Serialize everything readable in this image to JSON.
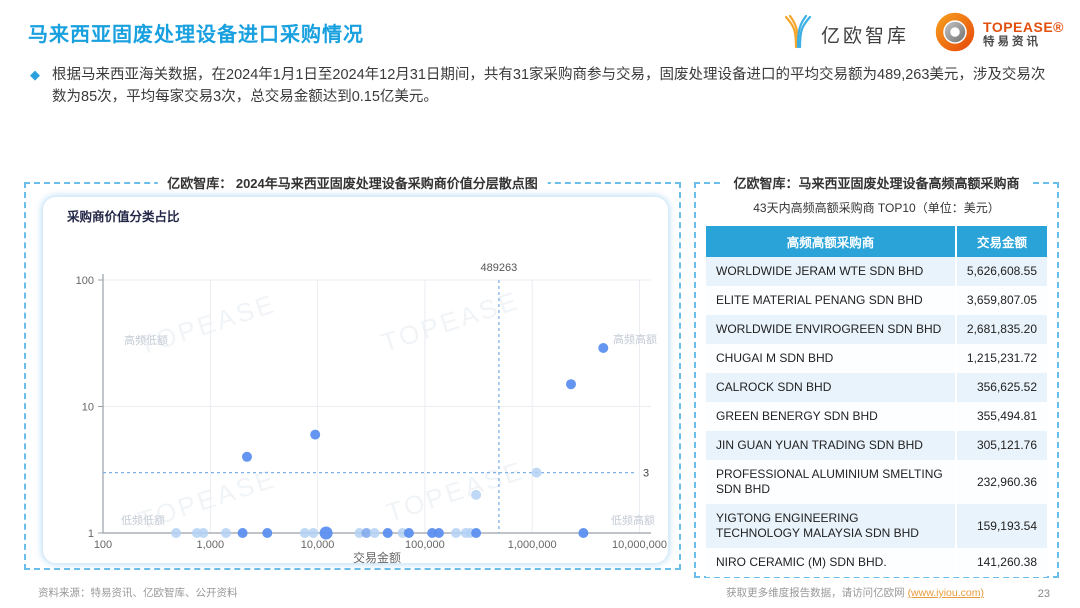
{
  "header": {
    "title": "马来西亚固废处理设备进口采购情况",
    "bullet": "根据马来西亚海关数据，在2024年1月1日至2024年12月31日期间，共有31家采购商参与交易，固废处理设备进口的平均交易额为489,263美元，涉及交易次数为85次，平均每家交易3次，总交易金额达到0.15亿美元。"
  },
  "logos": {
    "yiou_text": "亿欧智库",
    "topease_main": "TOPEASE®",
    "topease_sub": "特易资讯"
  },
  "left_panel": {
    "title": "亿欧智库： 2024年马来西亚固废处理设备采购商价值分层散点图",
    "card_label": "采购商价值分类占比"
  },
  "chart_data": {
    "type": "scatter",
    "title": "2024年马来西亚固废处理设备采购商价值分层散点图",
    "xlabel": "交易金额",
    "ylabel": "",
    "x_scale": "log",
    "y_scale": "log",
    "xlim": [
      100,
      10000000
    ],
    "ylim": [
      1,
      100
    ],
    "x_ticks": [
      "100",
      "1,000",
      "10,000",
      "100,000",
      "1,000,000",
      "10,000,000"
    ],
    "y_ticks": [
      "1",
      "10",
      "100"
    ],
    "grid": true,
    "avg_x_line": {
      "value": 489263,
      "label": "489263"
    },
    "avg_y_line": {
      "value": 3,
      "label": "3"
    },
    "quadrant_labels": {
      "top_left": "高频低额",
      "top_right": "高频高额",
      "bottom_left": "低频低额",
      "bottom_right": "低频高额"
    },
    "watermark": "TOPEASE",
    "points": [
      {
        "x": 480,
        "y": 1,
        "shade": "light"
      },
      {
        "x": 750,
        "y": 1,
        "shade": "light"
      },
      {
        "x": 860,
        "y": 1,
        "shade": "light"
      },
      {
        "x": 1400,
        "y": 1,
        "shade": "light"
      },
      {
        "x": 2000,
        "y": 1,
        "shade": "dark"
      },
      {
        "x": 3400,
        "y": 1,
        "shade": "dark"
      },
      {
        "x": 7600,
        "y": 1,
        "shade": "light"
      },
      {
        "x": 9100,
        "y": 1,
        "shade": "light"
      },
      {
        "x": 12000,
        "y": 1,
        "shade": "dark",
        "size": "big"
      },
      {
        "x": 24500,
        "y": 1,
        "shade": "light"
      },
      {
        "x": 28500,
        "y": 1,
        "shade": "mid"
      },
      {
        "x": 34000,
        "y": 1,
        "shade": "light"
      },
      {
        "x": 45000,
        "y": 1,
        "shade": "dark"
      },
      {
        "x": 62000,
        "y": 1,
        "shade": "light"
      },
      {
        "x": 71000,
        "y": 1,
        "shade": "dark"
      },
      {
        "x": 117000,
        "y": 1,
        "shade": "dark"
      },
      {
        "x": 135000,
        "y": 1,
        "shade": "dark"
      },
      {
        "x": 195000,
        "y": 1,
        "shade": "light"
      },
      {
        "x": 240000,
        "y": 1,
        "shade": "light"
      },
      {
        "x": 265000,
        "y": 1,
        "shade": "light"
      },
      {
        "x": 300000,
        "y": 1,
        "shade": "dark"
      },
      {
        "x": 3000000,
        "y": 1,
        "shade": "dark"
      },
      {
        "x": 2200,
        "y": 4,
        "shade": "dark"
      },
      {
        "x": 9500,
        "y": 6,
        "shade": "dark"
      },
      {
        "x": 300000,
        "y": 2,
        "shade": "light"
      },
      {
        "x": 1100000,
        "y": 3,
        "shade": "light"
      },
      {
        "x": 2300000,
        "y": 15,
        "shade": "dark"
      },
      {
        "x": 4600000,
        "y": 29,
        "shade": "dark"
      }
    ]
  },
  "right_panel": {
    "title": "亿欧智库：马来西亚固废处理设备高频高额采购商",
    "subtitle": "43天内高频高额采购商 TOP10（单位：美元）",
    "table": {
      "headers": [
        "高频高额采购商",
        "交易金额"
      ],
      "rows": [
        [
          "WORLDWIDE JERAM WTE SDN BHD",
          "5,626,608.55"
        ],
        [
          "ELITE MATERIAL PENANG SDN BHD",
          "3,659,807.05"
        ],
        [
          "WORLDWIDE ENVIROGREEN SDN BHD",
          "2,681,835.20"
        ],
        [
          "CHUGAI M SDN BHD",
          "1,215,231.72"
        ],
        [
          "CALROCK SDN BHD",
          "356,625.52"
        ],
        [
          "GREEN BENERGY SDN BHD",
          "355,494.81"
        ],
        [
          "JIN GUAN YUAN TRADING SDN BHD",
          "305,121.76"
        ],
        [
          "PROFESSIONAL ALUMINIUM SMELTING SDN BHD",
          "232,960.36"
        ],
        [
          "YIGTONG ENGINEERING TECHNOLOGY MALAYSIA SDN BHD",
          "159,193.54"
        ],
        [
          "NIRO CERAMIC (M) SDN BHD.",
          "141,260.38"
        ]
      ]
    }
  },
  "footer": {
    "source": "资料来源：特易资讯、亿欧智库、公开资料",
    "more_prefix": "获取更多维度报告数据，请访问亿欧网 ",
    "link": "(www.iyiou.com)",
    "page_number": "23"
  },
  "colors": {
    "title_blue": "#18A0DF",
    "table_header_blue": "#29A3D8",
    "row_alt_blue": "#E9F3FB",
    "dot_dark": "#5B8FF0",
    "dot_mid": "#82ABEE",
    "dot_light": "#B3D1F4",
    "dashed_avg_line": "#7FB3E8",
    "panel_border": "#6CBEEA",
    "link_orange": "#E89B3C",
    "topease_orange": "#E1500F"
  }
}
